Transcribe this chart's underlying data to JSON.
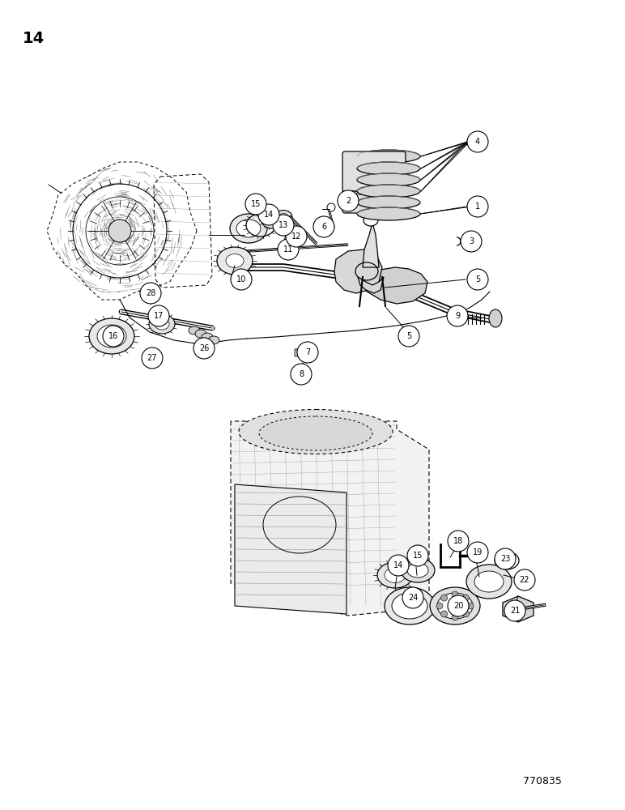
{
  "page_number": "14",
  "doc_number": "770835",
  "bg_color": "#ffffff",
  "fig_width": 7.72,
  "fig_height": 10.0,
  "dpi": 100,
  "upper_labels": [
    [
      "1",
      590,
      255
    ],
    [
      "2",
      430,
      248
    ],
    [
      "3",
      582,
      298
    ],
    [
      "4",
      590,
      175
    ],
    [
      "5",
      590,
      345
    ],
    [
      "5",
      505,
      415
    ],
    [
      "6",
      400,
      280
    ],
    [
      "7",
      380,
      435
    ],
    [
      "8",
      372,
      462
    ],
    [
      "9",
      565,
      390
    ],
    [
      "10",
      298,
      345
    ],
    [
      "11",
      356,
      308
    ],
    [
      "12",
      366,
      292
    ],
    [
      "13",
      350,
      278
    ],
    [
      "14",
      332,
      265
    ],
    [
      "15",
      316,
      252
    ],
    [
      "16",
      140,
      415
    ],
    [
      "17",
      196,
      390
    ],
    [
      "26",
      252,
      430
    ],
    [
      "27",
      188,
      442
    ],
    [
      "28",
      186,
      362
    ]
  ],
  "lower_labels": [
    [
      "14",
      492,
      698
    ],
    [
      "15",
      516,
      686
    ],
    [
      "18",
      566,
      668
    ],
    [
      "19",
      590,
      682
    ],
    [
      "20",
      566,
      748
    ],
    [
      "21",
      636,
      754
    ],
    [
      "22",
      648,
      716
    ],
    [
      "23",
      624,
      690
    ],
    [
      "24",
      510,
      738
    ]
  ]
}
